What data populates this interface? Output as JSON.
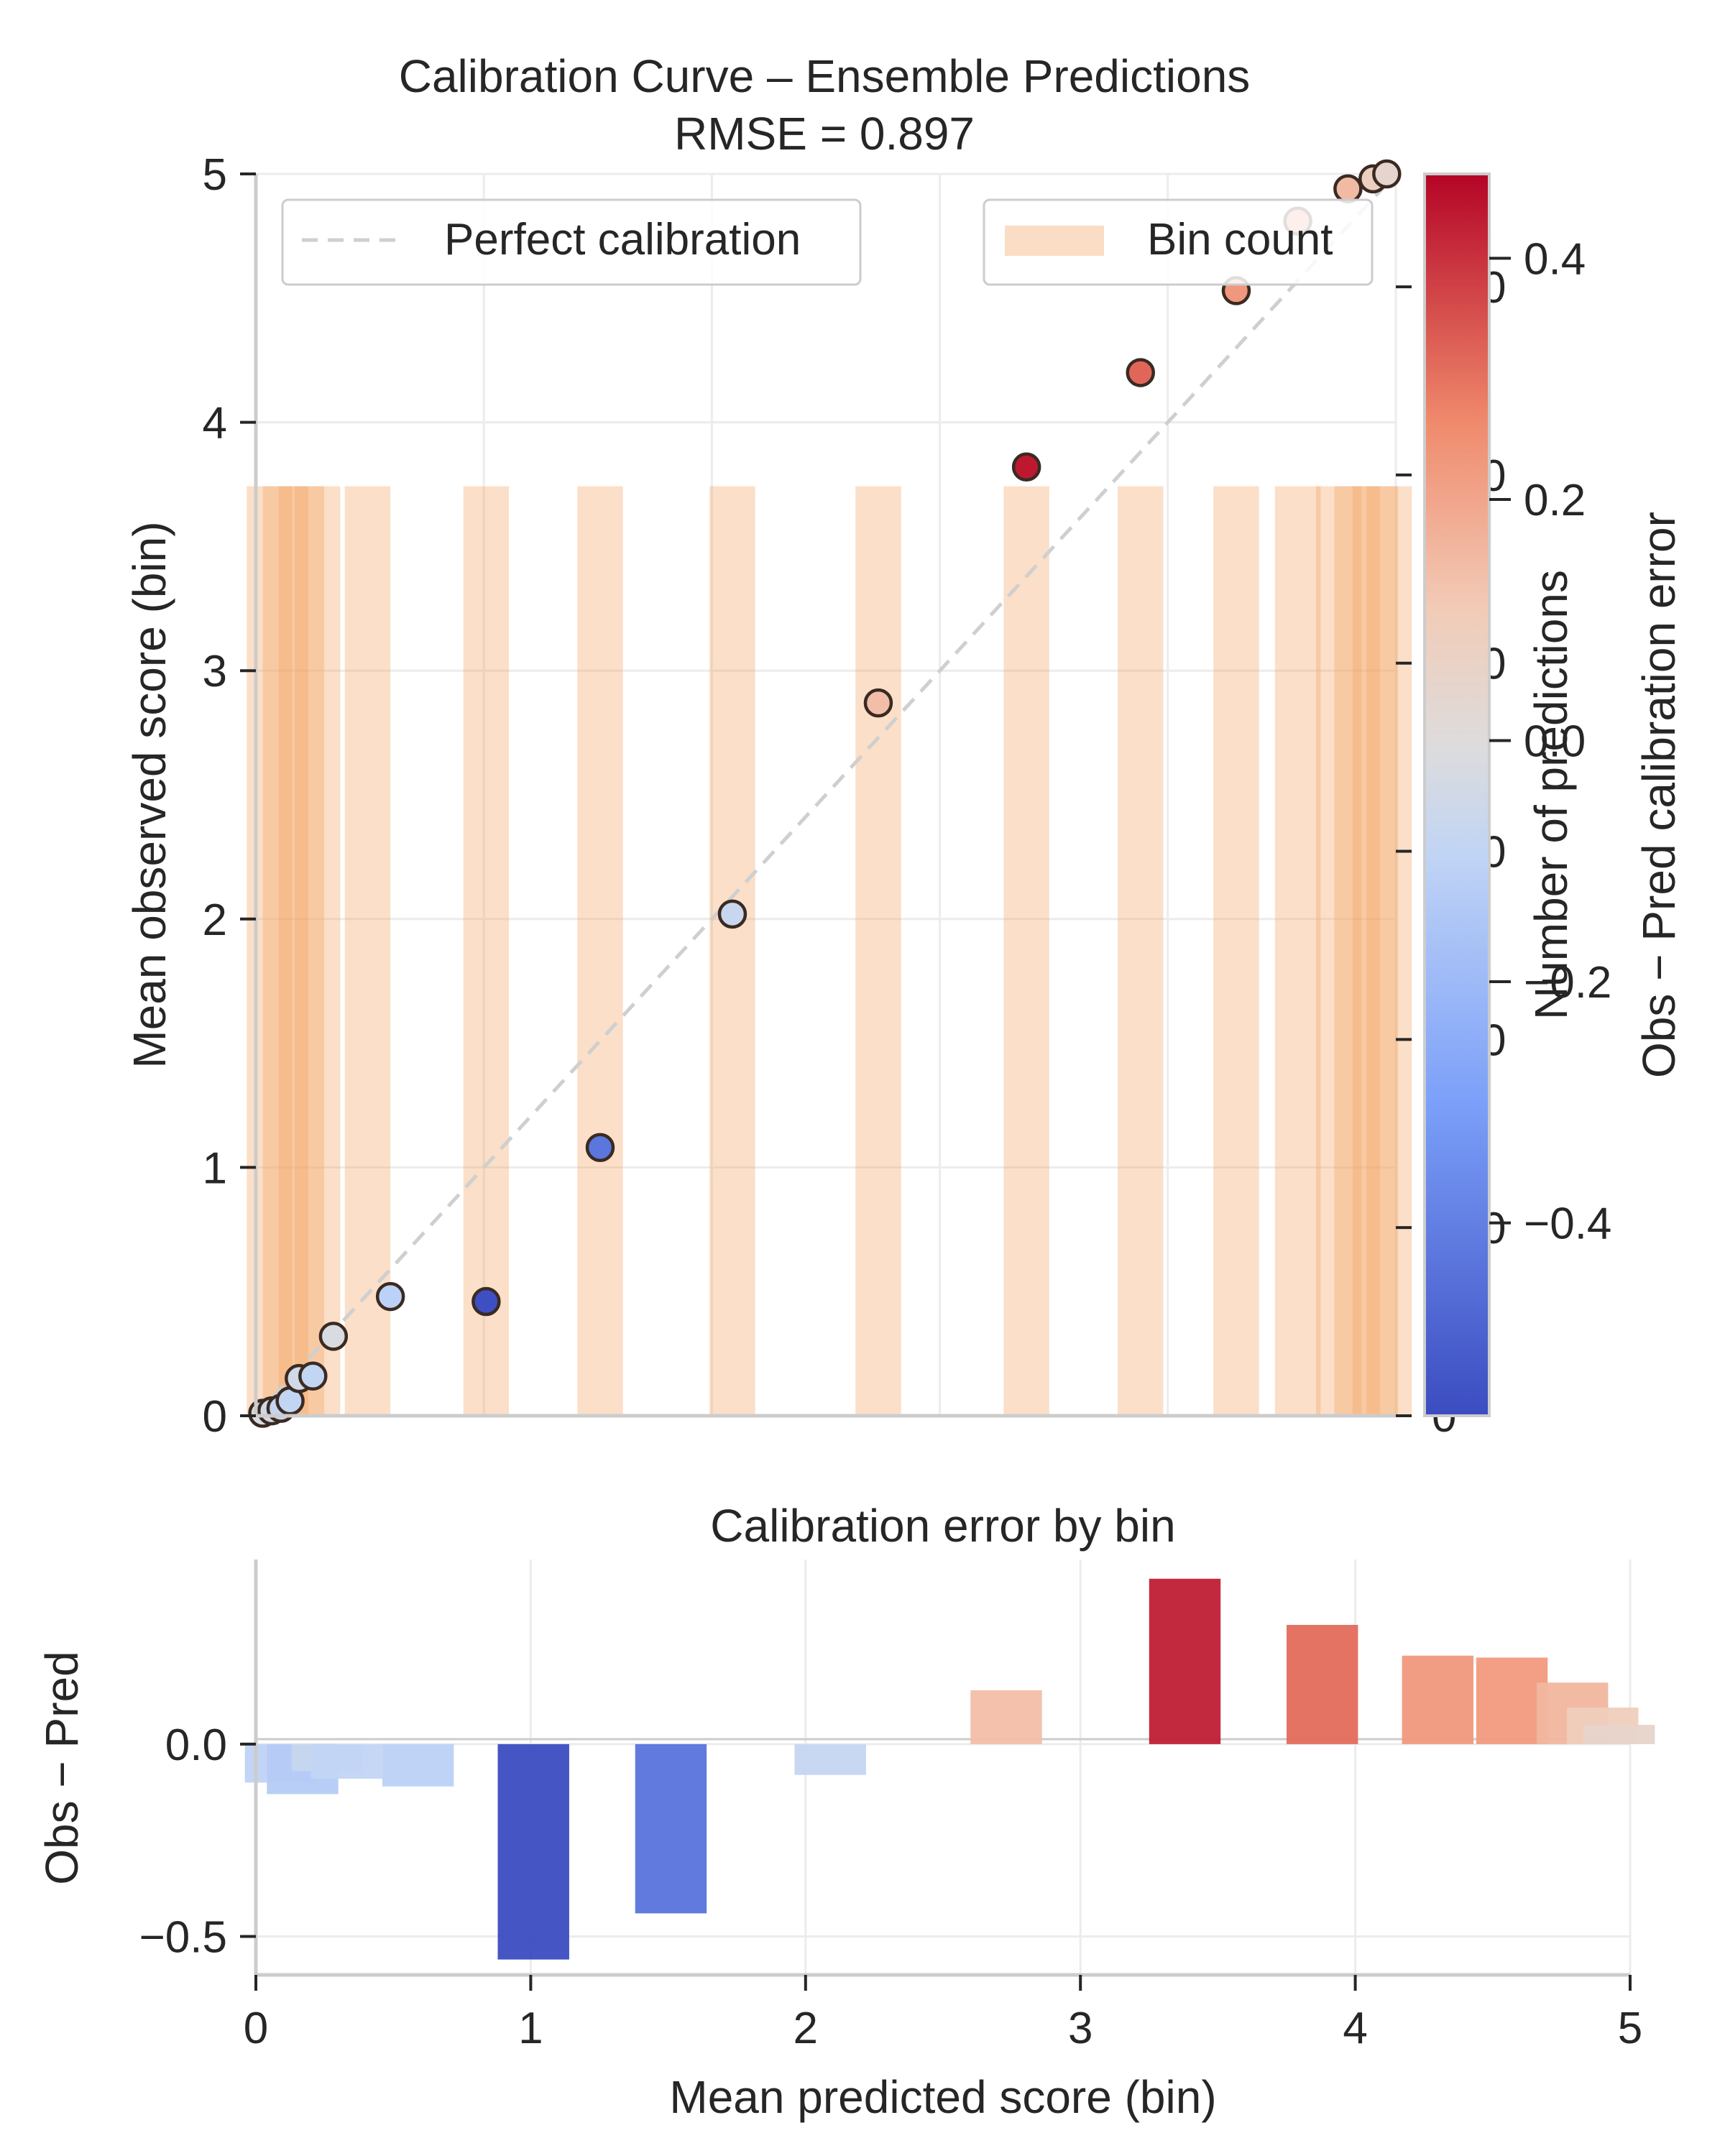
{
  "chart_data": [
    {
      "type": "scatter",
      "title": "Calibration Curve – Ensemble Predictions",
      "subtitle": "RMSE = 0.897",
      "xlabel": "",
      "ylabel": "Mean observed score (bin)",
      "xlim": [
        0,
        5
      ],
      "ylim": [
        0,
        5
      ],
      "y_ticks": [
        "0",
        "1",
        "2",
        "3",
        "4",
        "5"
      ],
      "grid": true,
      "legend_left": {
        "position": "top-left",
        "label": "Perfect calibration"
      },
      "legend_right": {
        "position": "top-right",
        "label": "Bin count"
      },
      "reference_line": {
        "label": "Perfect calibration",
        "from": [
          0,
          0
        ],
        "to": [
          5,
          5
        ],
        "style": "dashed",
        "color": "#cfcfcf"
      },
      "points": [
        {
          "x": 0.03,
          "y": 0.01,
          "err": 0.0
        },
        {
          "x": 0.07,
          "y": 0.02,
          "err": 0.0
        },
        {
          "x": 0.11,
          "y": 0.03,
          "err": 0.0
        },
        {
          "x": 0.15,
          "y": 0.06,
          "err": 0.01
        },
        {
          "x": 0.19,
          "y": 0.15,
          "err": 0.01
        },
        {
          "x": 0.25,
          "y": 0.16,
          "err": 0.01
        },
        {
          "x": 0.34,
          "y": 0.32,
          "err": 0.02
        },
        {
          "x": 0.59,
          "y": 0.48,
          "err": 0.02
        },
        {
          "x": 1.01,
          "y": 0.46,
          "err": 0.02
        },
        {
          "x": 1.51,
          "y": 1.08,
          "err": 0.05
        },
        {
          "x": 2.09,
          "y": 2.02,
          "err": 0.05
        },
        {
          "x": 2.73,
          "y": 2.87,
          "err": 0.05
        },
        {
          "x": 3.38,
          "y": 3.82,
          "err": 0.03
        },
        {
          "x": 3.88,
          "y": 4.2,
          "err": 0.02
        },
        {
          "x": 4.3,
          "y": 4.53,
          "err": 0.02
        },
        {
          "x": 4.57,
          "y": 4.81,
          "err": 0.01
        },
        {
          "x": 4.79,
          "y": 4.94,
          "err": 0.01
        },
        {
          "x": 4.9,
          "y": 4.98,
          "err": 0.0
        },
        {
          "x": 4.96,
          "y": 5.0,
          "err": 0.0
        }
      ],
      "bin_count_bars": {
        "ylabel": "Number of predictions",
        "ylim": [
          0,
          660
        ],
        "y_ticks": [
          "0",
          "100",
          "200",
          "300",
          "400",
          "500",
          "600"
        ],
        "bins": [
          {
            "x": 0.06,
            "count": 494
          },
          {
            "x": 0.13,
            "count": 494
          },
          {
            "x": 0.2,
            "count": 494
          },
          {
            "x": 0.27,
            "count": 494
          },
          {
            "x": 0.49,
            "count": 494
          },
          {
            "x": 1.01,
            "count": 494
          },
          {
            "x": 1.51,
            "count": 494
          },
          {
            "x": 2.09,
            "count": 494
          },
          {
            "x": 2.73,
            "count": 494
          },
          {
            "x": 3.38,
            "count": 494
          },
          {
            "x": 3.88,
            "count": 494
          },
          {
            "x": 4.3,
            "count": 494
          },
          {
            "x": 4.57,
            "count": 494
          },
          {
            "x": 4.75,
            "count": 494
          },
          {
            "x": 4.83,
            "count": 494
          },
          {
            "x": 4.91,
            "count": 494
          },
          {
            "x": 4.97,
            "count": 494
          }
        ]
      },
      "colorbar": {
        "label": "Obs − Pred calibration error",
        "range": [
          -0.56,
          0.47
        ],
        "ticks": [
          "−0.4",
          "−0.2",
          "0.0",
          "0.2",
          "0.4"
        ],
        "colormap": "coolwarm"
      }
    },
    {
      "type": "bar",
      "title": "Calibration error by bin",
      "xlabel": "Mean predicted score (bin)",
      "ylabel": "Obs − Pred",
      "xlim": [
        0,
        5
      ],
      "ylim": [
        -0.6,
        0.48
      ],
      "x_ticks": [
        "0",
        "1",
        "2",
        "3",
        "4",
        "5"
      ],
      "y_ticks": [
        "−0.5",
        "0.0"
      ],
      "grid": true,
      "bars": [
        {
          "x": 0.09,
          "value": -0.1
        },
        {
          "x": 0.17,
          "value": -0.13
        },
        {
          "x": 0.26,
          "value": -0.07
        },
        {
          "x": 0.33,
          "value": -0.09
        },
        {
          "x": 0.59,
          "value": -0.11
        },
        {
          "x": 1.01,
          "value": -0.56
        },
        {
          "x": 1.51,
          "value": -0.44
        },
        {
          "x": 2.09,
          "value": -0.08
        },
        {
          "x": 2.73,
          "value": 0.14
        },
        {
          "x": 3.38,
          "value": 0.43
        },
        {
          "x": 3.88,
          "value": 0.31
        },
        {
          "x": 4.3,
          "value": 0.23
        },
        {
          "x": 4.57,
          "value": 0.225
        },
        {
          "x": 4.79,
          "value": 0.16
        },
        {
          "x": 4.9,
          "value": 0.095
        },
        {
          "x": 4.96,
          "value": 0.05
        }
      ]
    }
  ]
}
